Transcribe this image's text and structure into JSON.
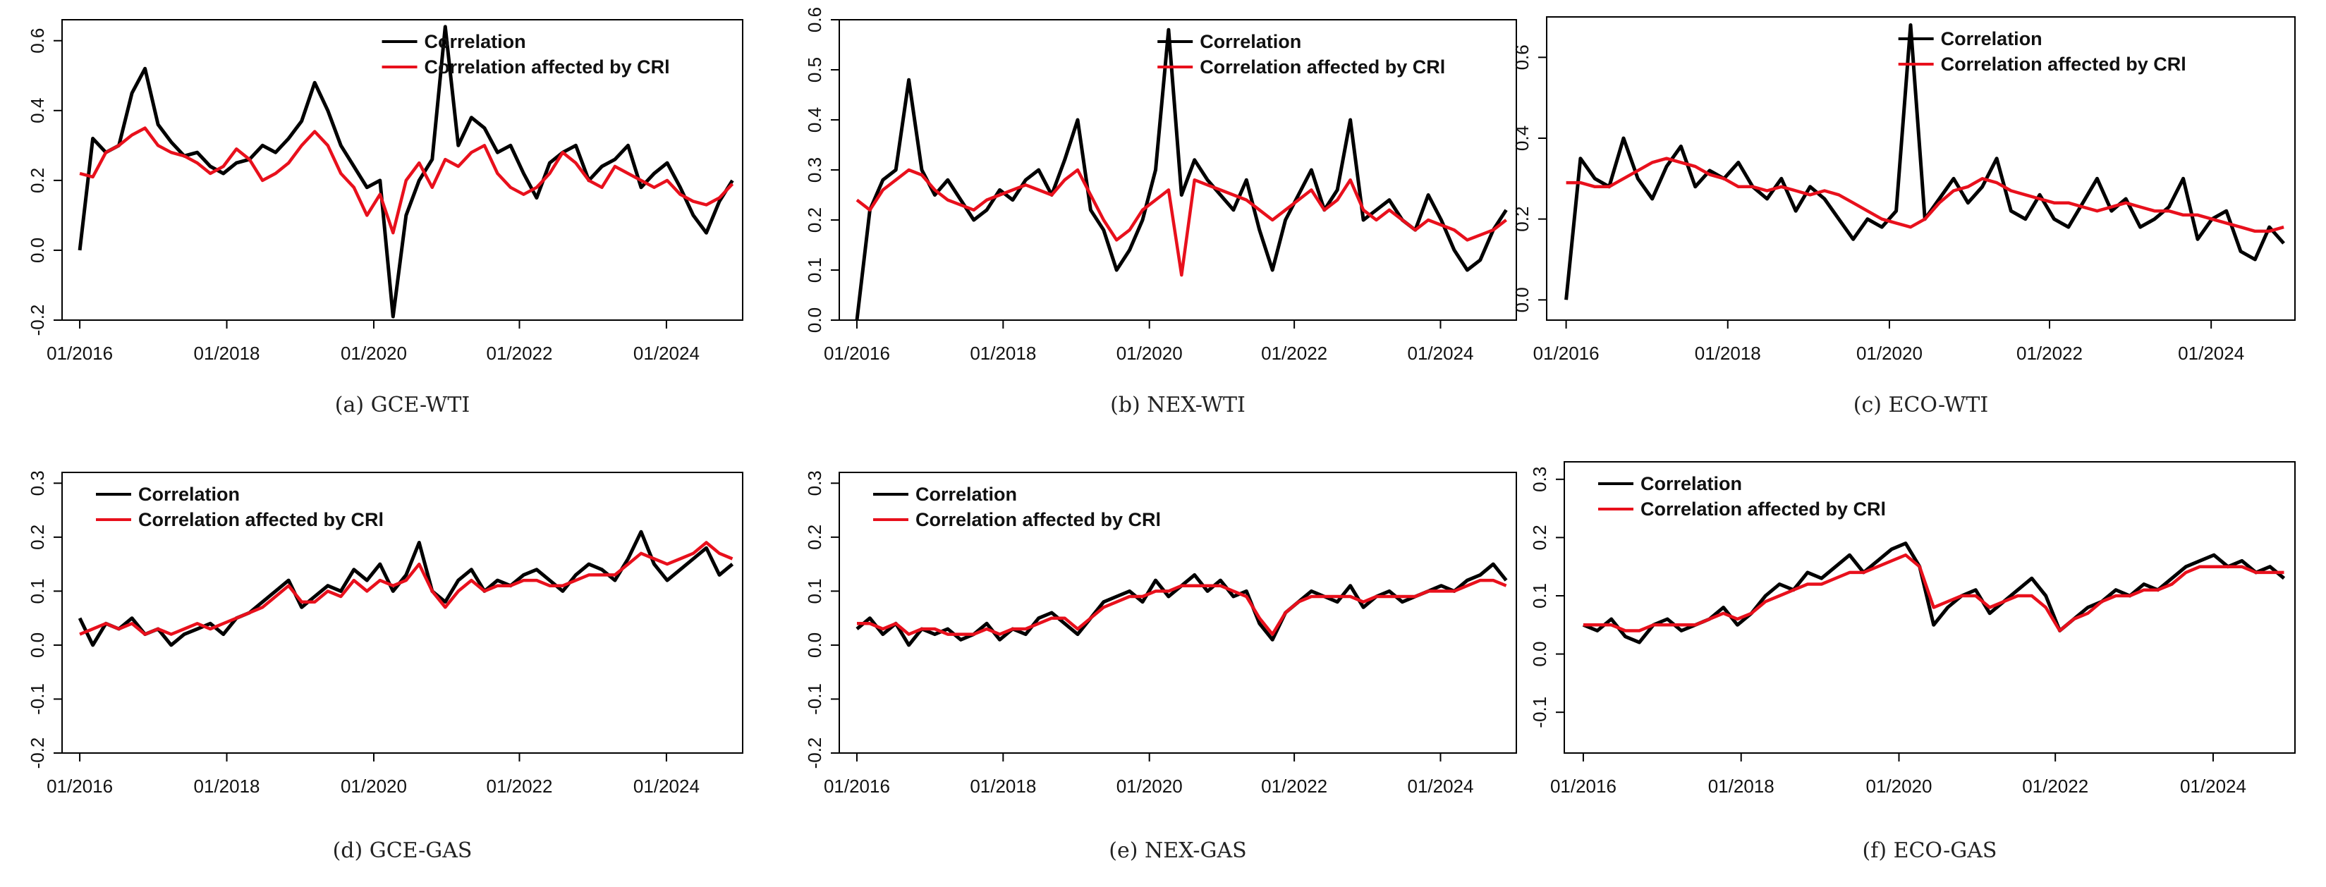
{
  "figure": {
    "legend": {
      "series1": "Correlation",
      "series2": "Correlation affected by CRl"
    },
    "colors": {
      "correlation": "#000000",
      "crl": "#e8101c"
    }
  },
  "chart_data": [
    {
      "type": "line",
      "caption": "(a)  GCE-WTI",
      "x_ticks": [
        "01/2016",
        "01/2018",
        "01/2020",
        "01/2022",
        "01/2024"
      ],
      "y_ticks": [
        "-0.2",
        "0.0",
        "0.2",
        "0.4",
        "0.6"
      ],
      "ylim": [
        -0.2,
        0.66
      ],
      "legend_position": "top-right",
      "series": [
        {
          "name": "Correlation",
          "values": [
            0.0,
            0.32,
            0.28,
            0.3,
            0.45,
            0.52,
            0.36,
            0.31,
            0.27,
            0.28,
            0.24,
            0.22,
            0.25,
            0.26,
            0.3,
            0.28,
            0.32,
            0.37,
            0.48,
            0.4,
            0.3,
            0.24,
            0.18,
            0.2,
            -0.19,
            0.1,
            0.2,
            0.26,
            0.64,
            0.3,
            0.38,
            0.35,
            0.28,
            0.3,
            0.22,
            0.15,
            0.25,
            0.28,
            0.3,
            0.2,
            0.24,
            0.26,
            0.3,
            0.18,
            0.22,
            0.25,
            0.18,
            0.1,
            0.05,
            0.14,
            0.2
          ]
        },
        {
          "name": "Correlation affected by CRl",
          "values": [
            0.22,
            0.21,
            0.28,
            0.3,
            0.33,
            0.35,
            0.3,
            0.28,
            0.27,
            0.25,
            0.22,
            0.24,
            0.29,
            0.26,
            0.2,
            0.22,
            0.25,
            0.3,
            0.34,
            0.3,
            0.22,
            0.18,
            0.1,
            0.16,
            0.05,
            0.2,
            0.25,
            0.18,
            0.26,
            0.24,
            0.28,
            0.3,
            0.22,
            0.18,
            0.16,
            0.18,
            0.22,
            0.28,
            0.25,
            0.2,
            0.18,
            0.24,
            0.22,
            0.2,
            0.18,
            0.2,
            0.16,
            0.14,
            0.13,
            0.15,
            0.19
          ]
        }
      ]
    },
    {
      "type": "line",
      "caption": "(b)  NEX-WTI",
      "x_ticks": [
        "01/2016",
        "01/2018",
        "01/2020",
        "01/2022",
        "01/2024"
      ],
      "y_ticks": [
        "0.0",
        "0.1",
        "0.2",
        "0.3",
        "0.4",
        "0.5",
        "0.6"
      ],
      "ylim": [
        0.0,
        0.6
      ],
      "legend_position": "top-right",
      "series": [
        {
          "name": "Correlation",
          "values": [
            0.0,
            0.22,
            0.28,
            0.3,
            0.48,
            0.3,
            0.25,
            0.28,
            0.24,
            0.2,
            0.22,
            0.26,
            0.24,
            0.28,
            0.3,
            0.25,
            0.32,
            0.4,
            0.22,
            0.18,
            0.1,
            0.14,
            0.2,
            0.3,
            0.58,
            0.25,
            0.32,
            0.28,
            0.25,
            0.22,
            0.28,
            0.18,
            0.1,
            0.2,
            0.25,
            0.3,
            0.22,
            0.26,
            0.4,
            0.2,
            0.22,
            0.24,
            0.2,
            0.18,
            0.25,
            0.2,
            0.14,
            0.1,
            0.12,
            0.18,
            0.22
          ]
        },
        {
          "name": "Correlation affected by CRl",
          "values": [
            0.24,
            0.22,
            0.26,
            0.28,
            0.3,
            0.29,
            0.26,
            0.24,
            0.23,
            0.22,
            0.24,
            0.25,
            0.26,
            0.27,
            0.26,
            0.25,
            0.28,
            0.3,
            0.25,
            0.2,
            0.16,
            0.18,
            0.22,
            0.24,
            0.26,
            0.09,
            0.28,
            0.27,
            0.26,
            0.25,
            0.24,
            0.22,
            0.2,
            0.22,
            0.24,
            0.26,
            0.22,
            0.24,
            0.28,
            0.22,
            0.2,
            0.22,
            0.2,
            0.18,
            0.2,
            0.19,
            0.18,
            0.16,
            0.17,
            0.18,
            0.2
          ]
        }
      ]
    },
    {
      "type": "line",
      "caption": "(c)  ECO-WTI",
      "x_ticks": [
        "01/2016",
        "01/2018",
        "01/2020",
        "01/2022",
        "01/2024"
      ],
      "y_ticks": [
        "0.0",
        "0.2",
        "0.4",
        "0.6"
      ],
      "ylim": [
        -0.05,
        0.7
      ],
      "legend_position": "top-right",
      "series": [
        {
          "name": "Correlation",
          "values": [
            0.0,
            0.35,
            0.3,
            0.28,
            0.4,
            0.3,
            0.25,
            0.33,
            0.38,
            0.28,
            0.32,
            0.3,
            0.34,
            0.28,
            0.25,
            0.3,
            0.22,
            0.28,
            0.25,
            0.2,
            0.15,
            0.2,
            0.18,
            0.22,
            0.68,
            0.2,
            0.25,
            0.3,
            0.24,
            0.28,
            0.35,
            0.22,
            0.2,
            0.26,
            0.2,
            0.18,
            0.24,
            0.3,
            0.22,
            0.25,
            0.18,
            0.2,
            0.23,
            0.3,
            0.15,
            0.2,
            0.22,
            0.12,
            0.1,
            0.18,
            0.14
          ]
        },
        {
          "name": "Correlation affected by CRl",
          "values": [
            0.29,
            0.29,
            0.28,
            0.28,
            0.3,
            0.32,
            0.34,
            0.35,
            0.34,
            0.33,
            0.31,
            0.3,
            0.28,
            0.28,
            0.27,
            0.28,
            0.27,
            0.26,
            0.27,
            0.26,
            0.24,
            0.22,
            0.2,
            0.19,
            0.18,
            0.2,
            0.24,
            0.27,
            0.28,
            0.3,
            0.29,
            0.27,
            0.26,
            0.25,
            0.24,
            0.24,
            0.23,
            0.22,
            0.23,
            0.24,
            0.23,
            0.22,
            0.22,
            0.21,
            0.21,
            0.2,
            0.19,
            0.18,
            0.17,
            0.17,
            0.18
          ]
        }
      ]
    },
    {
      "type": "line",
      "caption": "(d)  GCE-GAS",
      "x_ticks": [
        "01/2016",
        "01/2018",
        "01/2020",
        "01/2022",
        "01/2024"
      ],
      "y_ticks": [
        "-0.2",
        "-0.1",
        "0.0",
        "0.1",
        "0.2",
        "0.3"
      ],
      "ylim": [
        -0.2,
        0.32
      ],
      "legend_position": "top-left",
      "series": [
        {
          "name": "Correlation",
          "values": [
            0.05,
            0.0,
            0.04,
            0.03,
            0.05,
            0.02,
            0.03,
            0.0,
            0.02,
            0.03,
            0.04,
            0.02,
            0.05,
            0.06,
            0.08,
            0.1,
            0.12,
            0.07,
            0.09,
            0.11,
            0.1,
            0.14,
            0.12,
            0.15,
            0.1,
            0.13,
            0.19,
            0.1,
            0.08,
            0.12,
            0.14,
            0.1,
            0.12,
            0.11,
            0.13,
            0.14,
            0.12,
            0.1,
            0.13,
            0.15,
            0.14,
            0.12,
            0.16,
            0.21,
            0.15,
            0.12,
            0.14,
            0.16,
            0.18,
            0.13,
            0.15
          ]
        },
        {
          "name": "Correlation affected by CRl",
          "values": [
            0.02,
            0.03,
            0.04,
            0.03,
            0.04,
            0.02,
            0.03,
            0.02,
            0.03,
            0.04,
            0.03,
            0.04,
            0.05,
            0.06,
            0.07,
            0.09,
            0.11,
            0.08,
            0.08,
            0.1,
            0.09,
            0.12,
            0.1,
            0.12,
            0.11,
            0.12,
            0.15,
            0.1,
            0.07,
            0.1,
            0.12,
            0.1,
            0.11,
            0.11,
            0.12,
            0.12,
            0.11,
            0.11,
            0.12,
            0.13,
            0.13,
            0.13,
            0.15,
            0.17,
            0.16,
            0.15,
            0.16,
            0.17,
            0.19,
            0.17,
            0.16
          ]
        }
      ]
    },
    {
      "type": "line",
      "caption": "(e)  NEX-GAS",
      "x_ticks": [
        "01/2016",
        "01/2018",
        "01/2020",
        "01/2022",
        "01/2024"
      ],
      "y_ticks": [
        "-0.2",
        "-0.1",
        "0.0",
        "0.1",
        "0.2",
        "0.3"
      ],
      "ylim": [
        -0.2,
        0.32
      ],
      "legend_position": "top-left",
      "series": [
        {
          "name": "Correlation",
          "values": [
            0.03,
            0.05,
            0.02,
            0.04,
            0.0,
            0.03,
            0.02,
            0.03,
            0.01,
            0.02,
            0.04,
            0.01,
            0.03,
            0.02,
            0.05,
            0.06,
            0.04,
            0.02,
            0.05,
            0.08,
            0.09,
            0.1,
            0.08,
            0.12,
            0.09,
            0.11,
            0.13,
            0.1,
            0.12,
            0.09,
            0.1,
            0.04,
            0.01,
            0.06,
            0.08,
            0.1,
            0.09,
            0.08,
            0.11,
            0.07,
            0.09,
            0.1,
            0.08,
            0.09,
            0.1,
            0.11,
            0.1,
            0.12,
            0.13,
            0.15,
            0.12
          ]
        },
        {
          "name": "Correlation affected by CRl",
          "values": [
            0.04,
            0.04,
            0.03,
            0.04,
            0.02,
            0.03,
            0.03,
            0.02,
            0.02,
            0.02,
            0.03,
            0.02,
            0.03,
            0.03,
            0.04,
            0.05,
            0.05,
            0.03,
            0.05,
            0.07,
            0.08,
            0.09,
            0.09,
            0.1,
            0.1,
            0.11,
            0.11,
            0.11,
            0.11,
            0.1,
            0.09,
            0.05,
            0.02,
            0.06,
            0.08,
            0.09,
            0.09,
            0.09,
            0.09,
            0.08,
            0.09,
            0.09,
            0.09,
            0.09,
            0.1,
            0.1,
            0.1,
            0.11,
            0.12,
            0.12,
            0.11
          ]
        }
      ]
    },
    {
      "type": "line",
      "caption": "(f)  ECO-GAS",
      "x_ticks": [
        "01/2016",
        "01/2018",
        "01/2020",
        "01/2022",
        "01/2024"
      ],
      "y_ticks": [
        "-0.1",
        "0.0",
        "0.1",
        "0.2",
        "0.3"
      ],
      "ylim": [
        -0.17,
        0.33
      ],
      "legend_position": "top-left",
      "series": [
        {
          "name": "Correlation",
          "values": [
            0.05,
            0.04,
            0.06,
            0.03,
            0.02,
            0.05,
            0.06,
            0.04,
            0.05,
            0.06,
            0.08,
            0.05,
            0.07,
            0.1,
            0.12,
            0.11,
            0.14,
            0.13,
            0.15,
            0.17,
            0.14,
            0.16,
            0.18,
            0.19,
            0.15,
            0.05,
            0.08,
            0.1,
            0.11,
            0.07,
            0.09,
            0.11,
            0.13,
            0.1,
            0.04,
            0.06,
            0.08,
            0.09,
            0.11,
            0.1,
            0.12,
            0.11,
            0.13,
            0.15,
            0.16,
            0.17,
            0.15,
            0.16,
            0.14,
            0.15,
            0.13
          ]
        },
        {
          "name": "Correlation affected by CRl",
          "values": [
            0.05,
            0.05,
            0.05,
            0.04,
            0.04,
            0.05,
            0.05,
            0.05,
            0.05,
            0.06,
            0.07,
            0.06,
            0.07,
            0.09,
            0.1,
            0.11,
            0.12,
            0.12,
            0.13,
            0.14,
            0.14,
            0.15,
            0.16,
            0.17,
            0.15,
            0.08,
            0.09,
            0.1,
            0.1,
            0.08,
            0.09,
            0.1,
            0.1,
            0.08,
            0.04,
            0.06,
            0.07,
            0.09,
            0.1,
            0.1,
            0.11,
            0.11,
            0.12,
            0.14,
            0.15,
            0.15,
            0.15,
            0.15,
            0.14,
            0.14,
            0.14
          ]
        }
      ]
    }
  ]
}
